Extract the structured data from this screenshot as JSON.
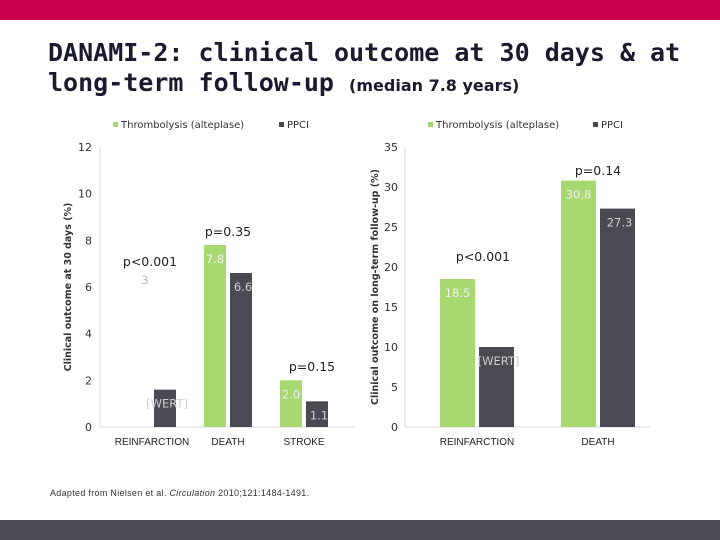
{
  "title_line1": "DANAMI-2: clinical outcome at 30 days & at",
  "title_line2": "long-term follow-up",
  "title_suffix": "(median 7.8 years)",
  "citation": {
    "prefix": "Adapted from Nielsen et al. ",
    "journal": "Circulation",
    "suffix": " 2010;121:1484-1491."
  },
  "colors": {
    "brand": "#c8004b",
    "footer": "#4a4a52",
    "thrombolysis": "#a8d870",
    "ppci": "#4a4a52"
  },
  "chart_data": [
    {
      "type": "bar",
      "ylabel": "Clinical outcome at 30 days (%)",
      "ylim": [
        0,
        12
      ],
      "yticks": [
        0,
        2,
        4,
        6,
        8,
        10,
        12
      ],
      "categories": [
        "REINFARCTION",
        "DEATH",
        "STROKE"
      ],
      "series": [
        {
          "name": "Thrombolysis (alteplase)",
          "values": [
            null,
            7.8,
            2.0
          ],
          "labels": [
            "3",
            "7.8",
            "2.0"
          ]
        },
        {
          "name": "PPCI",
          "values": [
            1.6,
            6.6,
            1.1
          ],
          "labels": [
            "[WERT]",
            "6.6",
            "1.1"
          ]
        }
      ],
      "pvalues": [
        "p<0.001",
        "p=0.35",
        "p=0.15"
      ],
      "legend_position": "top",
      "grid": false
    },
    {
      "type": "bar",
      "ylabel": "Clinical outcome on long-term follow-up (%)",
      "ylim": [
        0,
        35
      ],
      "yticks": [
        0,
        5,
        10,
        15,
        20,
        25,
        30,
        35
      ],
      "categories": [
        "REINFARCTION",
        "DEATH"
      ],
      "series": [
        {
          "name": "Thrombolysis (alteplase)",
          "values": [
            18.5,
            30.8
          ],
          "labels": [
            "18.5",
            "30.8"
          ]
        },
        {
          "name": "PPCI",
          "values": [
            10.0,
            27.3
          ],
          "labels": [
            "[WERT]",
            "27.3"
          ]
        }
      ],
      "pvalues": [
        "p<0.001",
        "p=0.14"
      ],
      "legend_position": "top",
      "grid": false
    }
  ]
}
